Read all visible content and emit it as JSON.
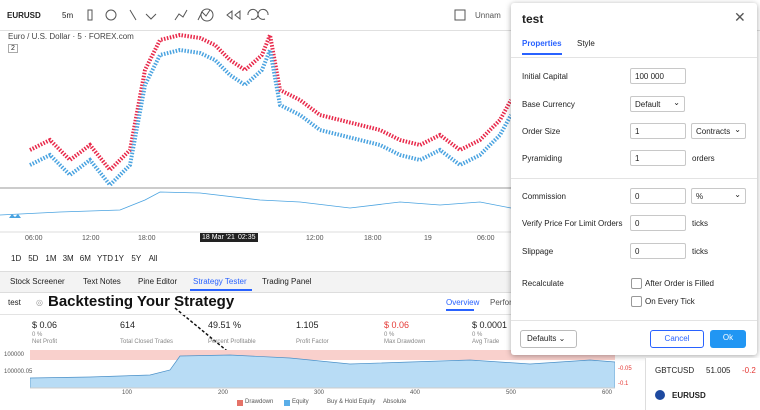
{
  "toolbar": {
    "symbol": "EURUSD",
    "interval": "5m",
    "layout": "Unnam"
  },
  "chart": {
    "legend": "Euro / U.S. Dollar · 5 · FOREX.com",
    "pane_count": "2",
    "time_labels": [
      "06:00",
      "12:00",
      "18:00",
      "18 Mar '21",
      "02:35",
      "12:00",
      "18:00",
      "19",
      "06:00"
    ],
    "ranges": [
      "1D",
      "5D",
      "1M",
      "3M",
      "6M",
      "YTD",
      "1Y",
      "5Y",
      "All"
    ]
  },
  "tabs": [
    "Stock Screener",
    "Text Notes",
    "Pine Editor",
    "Strategy Tester",
    "Trading Panel"
  ],
  "strategy": {
    "name": "test",
    "annotation": "Backtesting Your Strategy",
    "views": [
      "Overview",
      "Perfor"
    ],
    "metrics": [
      {
        "value": "$ 0.06",
        "pct": "0 %",
        "label": "Net Profit"
      },
      {
        "value": "614",
        "label": "Total Closed Trades"
      },
      {
        "value": "49.51 %",
        "label": "Percent Profitable"
      },
      {
        "value": "1.105",
        "label": "Profit Factor"
      },
      {
        "value": "$ 0.06",
        "pct": "0 %",
        "label": "Max Drawdown"
      },
      {
        "value": "$ 0.0001",
        "pct": "0 %",
        "label": "Avg Trade"
      }
    ],
    "equity_left_labels": [
      "100000",
      "100000.05"
    ],
    "equity_right_labels": [
      "-0.05",
      "-0.1"
    ],
    "equity_x_labels": [
      "100",
      "200",
      "300",
      "400",
      "500",
      "600"
    ],
    "legend": [
      "Drawdown",
      "Equity",
      "Buy & Hold Equity",
      "Absolute"
    ]
  },
  "dialog": {
    "title": "test",
    "tabs": [
      "Properties",
      "Style"
    ],
    "rows": [
      {
        "label": "Initial Capital",
        "input": "100 000"
      },
      {
        "label": "Base Currency",
        "select": "Default"
      },
      {
        "label": "Order Size",
        "input": "1",
        "select": "Contracts"
      },
      {
        "label": "Pyramiding",
        "input": "1",
        "unit": "orders"
      },
      {
        "label": "Commission",
        "input": "0",
        "select": "%"
      },
      {
        "label": "Verify Price For Limit Orders",
        "input": "0",
        "unit": "ticks"
      },
      {
        "label": "Slippage",
        "input": "0",
        "unit": "ticks"
      }
    ],
    "recalculate": {
      "label": "Recalculate",
      "options": [
        "After Order is Filled",
        "On Every Tick"
      ]
    },
    "buttons": {
      "defaults": "Defaults",
      "cancel": "Cancel",
      "ok": "Ok"
    }
  },
  "watchlist": [
    {
      "symbol": "GBTCUSD",
      "price": "51.005",
      "change": "-0.2"
    },
    {
      "symbol": "EURUSD"
    }
  ]
}
